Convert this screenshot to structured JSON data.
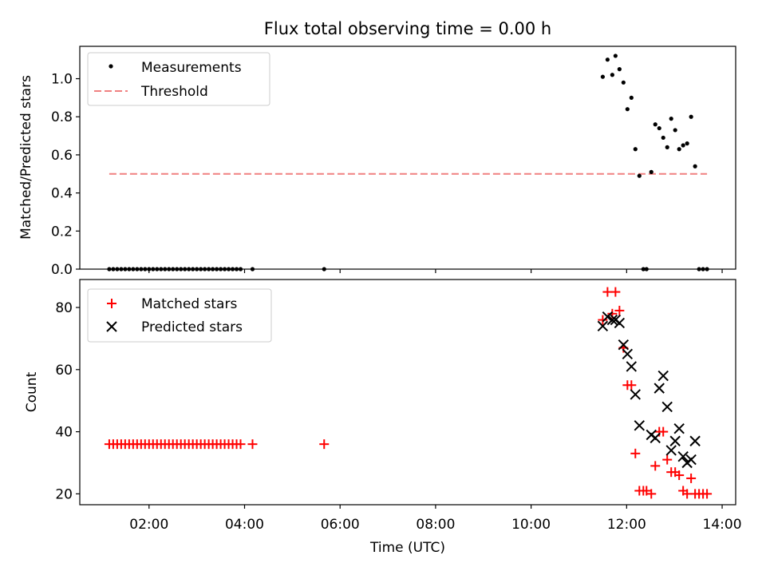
{
  "chart_data": [
    {
      "type": "scatter",
      "title": "Flux total observing time = 0.00 h",
      "xlabel": "",
      "ylabel": "Matched/Predicted stars",
      "xlim": [
        "00:33",
        "14:17"
      ],
      "ylim": [
        0,
        1.17
      ],
      "yticks": [
        0.0,
        0.2,
        0.4,
        0.6,
        0.8,
        1.0
      ],
      "ytick_labels": [
        "0.0",
        "0.2",
        "0.4",
        "0.6",
        "0.8",
        "1.0"
      ],
      "grid": false,
      "legend": {
        "placement": "top-left",
        "entries": [
          "Measurements",
          "Threshold"
        ]
      },
      "series": [
        {
          "name": "Measurements",
          "marker": "dot",
          "color": "#000000",
          "points": [
            [
              "01:10",
              0
            ],
            [
              "01:15",
              0
            ],
            [
              "01:20",
              0
            ],
            [
              "01:25",
              0
            ],
            [
              "01:30",
              0
            ],
            [
              "01:35",
              0
            ],
            [
              "01:40",
              0
            ],
            [
              "01:45",
              0
            ],
            [
              "01:50",
              0
            ],
            [
              "01:55",
              0
            ],
            [
              "02:00",
              0
            ],
            [
              "02:05",
              0
            ],
            [
              "02:10",
              0
            ],
            [
              "02:15",
              0
            ],
            [
              "02:20",
              0
            ],
            [
              "02:25",
              0
            ],
            [
              "02:30",
              0
            ],
            [
              "02:35",
              0
            ],
            [
              "02:40",
              0
            ],
            [
              "02:45",
              0
            ],
            [
              "02:50",
              0
            ],
            [
              "02:55",
              0
            ],
            [
              "03:00",
              0
            ],
            [
              "03:05",
              0
            ],
            [
              "03:10",
              0
            ],
            [
              "03:15",
              0
            ],
            [
              "03:20",
              0
            ],
            [
              "03:25",
              0
            ],
            [
              "03:30",
              0
            ],
            [
              "03:35",
              0
            ],
            [
              "03:40",
              0
            ],
            [
              "03:45",
              0
            ],
            [
              "03:50",
              0
            ],
            [
              "03:55",
              0
            ],
            [
              "04:10",
              0
            ],
            [
              "05:40",
              0
            ],
            [
              "11:30",
              1.01
            ],
            [
              "11:36",
              1.1
            ],
            [
              "11:42",
              1.02
            ],
            [
              "11:46",
              1.12
            ],
            [
              "11:51",
              1.05
            ],
            [
              "11:56",
              0.98
            ],
            [
              "12:01",
              0.84
            ],
            [
              "12:06",
              0.9
            ],
            [
              "12:11",
              0.63
            ],
            [
              "12:16",
              0.49
            ],
            [
              "12:21",
              0
            ],
            [
              "12:25",
              0
            ],
            [
              "12:31",
              0.51
            ],
            [
              "12:36",
              0.76
            ],
            [
              "12:41",
              0.74
            ],
            [
              "12:46",
              0.69
            ],
            [
              "12:51",
              0.64
            ],
            [
              "12:56",
              0.79
            ],
            [
              "13:01",
              0.73
            ],
            [
              "13:06",
              0.63
            ],
            [
              "13:11",
              0.65
            ],
            [
              "13:16",
              0.66
            ],
            [
              "13:21",
              0.8
            ],
            [
              "13:26",
              0.54
            ],
            [
              "13:31",
              0
            ],
            [
              "13:36",
              0
            ],
            [
              "13:41",
              0
            ]
          ]
        },
        {
          "name": "Threshold",
          "style": "dashed",
          "color": "#f08080",
          "points": [
            [
              "01:10",
              0.5
            ],
            [
              "13:41",
              0.5
            ]
          ]
        }
      ]
    },
    {
      "type": "scatter",
      "title": "",
      "xlabel": "Time (UTC)",
      "ylabel": "Count",
      "xlim": [
        "00:33",
        "14:17"
      ],
      "ylim": [
        16.5,
        89
      ],
      "yticks": [
        20,
        40,
        60,
        80
      ],
      "ytick_labels": [
        "20",
        "40",
        "60",
        "80"
      ],
      "xticks": [
        "02:00",
        "04:00",
        "06:00",
        "08:00",
        "10:00",
        "12:00",
        "14:00"
      ],
      "xtick_labels": [
        "02:00",
        "04:00",
        "06:00",
        "08:00",
        "10:00",
        "12:00",
        "14:00"
      ],
      "grid": false,
      "legend": {
        "placement": "top-left",
        "entries": [
          "Matched stars",
          "Predicted stars"
        ]
      },
      "series": [
        {
          "name": "Matched stars",
          "marker": "plus",
          "color": "#ff0000",
          "points": [
            [
              "01:10",
              36
            ],
            [
              "01:15",
              36
            ],
            [
              "01:20",
              36
            ],
            [
              "01:25",
              36
            ],
            [
              "01:30",
              36
            ],
            [
              "01:35",
              36
            ],
            [
              "01:40",
              36
            ],
            [
              "01:45",
              36
            ],
            [
              "01:50",
              36
            ],
            [
              "01:55",
              36
            ],
            [
              "02:00",
              36
            ],
            [
              "02:05",
              36
            ],
            [
              "02:10",
              36
            ],
            [
              "02:15",
              36
            ],
            [
              "02:20",
              36
            ],
            [
              "02:25",
              36
            ],
            [
              "02:30",
              36
            ],
            [
              "02:35",
              36
            ],
            [
              "02:40",
              36
            ],
            [
              "02:45",
              36
            ],
            [
              "02:50",
              36
            ],
            [
              "02:55",
              36
            ],
            [
              "03:00",
              36
            ],
            [
              "03:05",
              36
            ],
            [
              "03:10",
              36
            ],
            [
              "03:15",
              36
            ],
            [
              "03:20",
              36
            ],
            [
              "03:25",
              36
            ],
            [
              "03:30",
              36
            ],
            [
              "03:35",
              36
            ],
            [
              "03:40",
              36
            ],
            [
              "03:45",
              36
            ],
            [
              "03:50",
              36
            ],
            [
              "03:55",
              36
            ],
            [
              "04:10",
              36
            ],
            [
              "05:40",
              36
            ],
            [
              "11:30",
              76
            ],
            [
              "11:36",
              85
            ],
            [
              "11:42",
              78
            ],
            [
              "11:46",
              85
            ],
            [
              "11:51",
              79
            ],
            [
              "11:56",
              67
            ],
            [
              "12:01",
              55
            ],
            [
              "12:06",
              55
            ],
            [
              "12:11",
              33
            ],
            [
              "12:16",
              21
            ],
            [
              "12:21",
              21
            ],
            [
              "12:25",
              21
            ],
            [
              "12:31",
              20
            ],
            [
              "12:36",
              29
            ],
            [
              "12:41",
              40
            ],
            [
              "12:46",
              40
            ],
            [
              "12:51",
              31
            ],
            [
              "12:56",
              27
            ],
            [
              "13:01",
              27
            ],
            [
              "13:06",
              26
            ],
            [
              "13:11",
              21
            ],
            [
              "13:16",
              20
            ],
            [
              "13:21",
              25
            ],
            [
              "13:26",
              20
            ],
            [
              "13:31",
              20
            ],
            [
              "13:36",
              20
            ],
            [
              "13:41",
              20
            ]
          ]
        },
        {
          "name": "Predicted stars",
          "marker": "x",
          "color": "#000000",
          "points": [
            [
              "11:30",
              74
            ],
            [
              "11:36",
              77
            ],
            [
              "11:42",
              76
            ],
            [
              "11:46",
              76
            ],
            [
              "11:51",
              75
            ],
            [
              "11:56",
              68
            ],
            [
              "12:01",
              65
            ],
            [
              "12:06",
              61
            ],
            [
              "12:11",
              52
            ],
            [
              "12:16",
              42
            ],
            [
              "12:31",
              39
            ],
            [
              "12:36",
              38
            ],
            [
              "12:41",
              54
            ],
            [
              "12:46",
              58
            ],
            [
              "12:51",
              48
            ],
            [
              "12:56",
              34
            ],
            [
              "13:01",
              37
            ],
            [
              "13:06",
              41
            ],
            [
              "13:11",
              32
            ],
            [
              "13:16",
              30
            ],
            [
              "13:21",
              31
            ],
            [
              "13:26",
              37
            ]
          ]
        }
      ]
    }
  ]
}
